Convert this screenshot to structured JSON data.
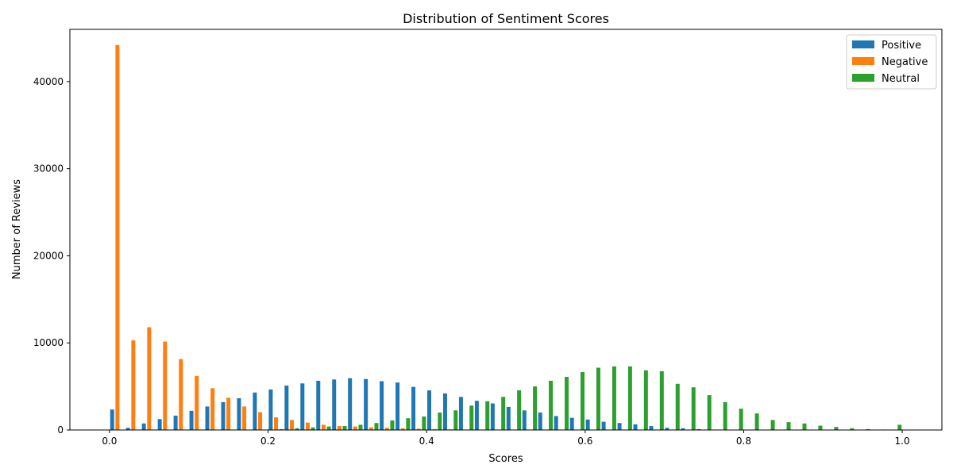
{
  "chart_data": {
    "type": "bar",
    "title": "Distribution of Sentiment Scores",
    "xlabel": "Scores",
    "ylabel": "Number of Reviews",
    "xlim": [
      -0.05,
      1.05
    ],
    "ylim": [
      0,
      46000
    ],
    "xticks": [
      0.0,
      0.2,
      0.4,
      0.6,
      0.8,
      1.0
    ],
    "xtick_labels": [
      "0.0",
      "0.2",
      "0.4",
      "0.6",
      "0.8",
      "1.0"
    ],
    "yticks": [
      0,
      10000,
      20000,
      30000,
      40000
    ],
    "ytick_labels": [
      "0",
      "10000",
      "20000",
      "30000",
      "40000"
    ],
    "grid": false,
    "legend_position": "top-right",
    "bins": 50,
    "bin_width": 0.02,
    "series": [
      {
        "name": "Positive",
        "color": "#1f77b4",
        "values": [
          2350,
          250,
          750,
          1250,
          1650,
          2200,
          2700,
          3200,
          3650,
          4300,
          4650,
          5100,
          5350,
          5650,
          5800,
          5950,
          5850,
          5600,
          5450,
          4950,
          4550,
          4200,
          3800,
          3350,
          3050,
          2650,
          2250,
          2000,
          1600,
          1400,
          1200,
          950,
          800,
          650,
          450,
          250,
          200,
          100,
          50,
          30,
          20,
          10,
          5,
          0,
          0,
          0,
          0,
          0,
          0,
          0
        ]
      },
      {
        "name": "Negative",
        "color": "#ff7f0e",
        "values": [
          44200,
          10300,
          11800,
          10150,
          8150,
          6200,
          4800,
          3700,
          2700,
          2050,
          1450,
          1150,
          850,
          600,
          450,
          400,
          300,
          250,
          200,
          150,
          100,
          80,
          50,
          30,
          20,
          10,
          5,
          0,
          0,
          0,
          0,
          0,
          0,
          0,
          0,
          0,
          0,
          0,
          0,
          0,
          0,
          0,
          0,
          0,
          0,
          0,
          0,
          0,
          0,
          0
        ]
      },
      {
        "name": "Neutral",
        "color": "#2ca02c",
        "values": [
          0,
          0,
          0,
          0,
          0,
          0,
          0,
          0,
          0,
          50,
          100,
          200,
          300,
          400,
          450,
          600,
          800,
          1100,
          1350,
          1550,
          2000,
          2250,
          2800,
          3300,
          3800,
          4550,
          5000,
          5650,
          6100,
          6650,
          7150,
          7300,
          7300,
          6850,
          6750,
          5300,
          4900,
          4000,
          3200,
          2450,
          1900,
          1150,
          900,
          750,
          500,
          350,
          200,
          100,
          50,
          600
        ]
      }
    ]
  }
}
